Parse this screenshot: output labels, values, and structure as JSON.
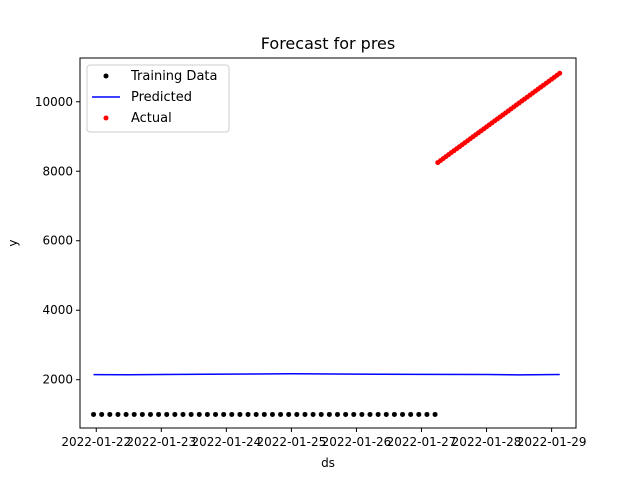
{
  "chart_data": {
    "type": "scatter",
    "title": "Forecast for pres",
    "xlabel": "ds",
    "ylabel": "y",
    "x_ticks": [
      "2022-01-22",
      "2022-01-23",
      "2022-01-24",
      "2022-01-25",
      "2022-01-26",
      "2022-01-27",
      "2022-01-28",
      "2022-01-29"
    ],
    "y_ticks": [
      "2000",
      "4000",
      "6000",
      "8000",
      "10000"
    ],
    "x_range": [
      "2022-01-21 18:00",
      "2022-01-29 09:00"
    ],
    "ylim": [
      610,
      11260
    ],
    "legend": {
      "position": "upper-left",
      "entries": [
        "Training Data",
        "Predicted",
        "Actual"
      ]
    },
    "series": [
      {
        "name": "Training Data",
        "kind": "scatter",
        "color": "#000000",
        "x_start": "2022-01-21 23:00",
        "x_end": "2022-01-27 06:00",
        "step_hours": 3,
        "y": 1000
      },
      {
        "name": "Predicted",
        "kind": "line",
        "color": "#0000ff",
        "x": [
          "2022-01-21 23:00",
          "2022-01-22 12:00",
          "2022-01-23 00:00",
          "2022-01-24 00:00",
          "2022-01-25 00:00",
          "2022-01-26 00:00",
          "2022-01-27 00:00",
          "2022-01-28 00:00",
          "2022-01-28 12:00",
          "2022-01-29 03:00"
        ],
        "y": [
          2145,
          2142,
          2150,
          2160,
          2170,
          2160,
          2155,
          2150,
          2138,
          2150
        ]
      },
      {
        "name": "Actual",
        "kind": "scatter",
        "color": "#ff0000",
        "x_start": "2022-01-27 06:00",
        "x_end": "2022-01-29 03:00",
        "step_hours": 1,
        "y_start": 8250,
        "y_end": 10820
      }
    ]
  }
}
